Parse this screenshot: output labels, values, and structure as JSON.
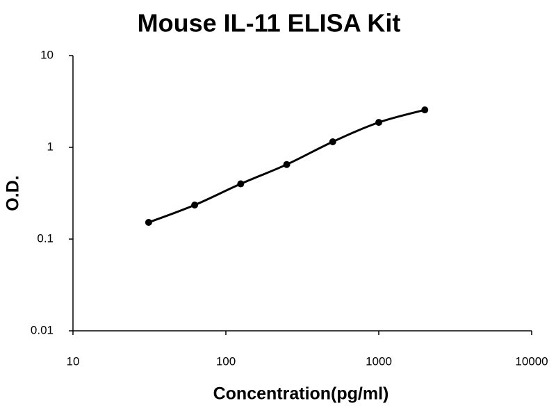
{
  "chart_data": {
    "type": "line",
    "title": "Mouse IL-11 ELISA Kit",
    "x_label": "Concentration(pg/ml)",
    "y_label": "O.D.",
    "x": [
      31.25,
      62.5,
      125,
      250,
      500,
      1000,
      2000
    ],
    "values": [
      0.152,
      0.235,
      0.4,
      0.65,
      1.15,
      1.87,
      2.56
    ],
    "color": "#000000",
    "x_log": true,
    "y_log": true,
    "xlim": [
      10,
      10000
    ],
    "xticks": [
      10,
      100,
      1000,
      10000
    ],
    "ylim": [
      0.01,
      10
    ],
    "yticks": [
      0.01,
      0.1,
      1,
      10
    ]
  }
}
